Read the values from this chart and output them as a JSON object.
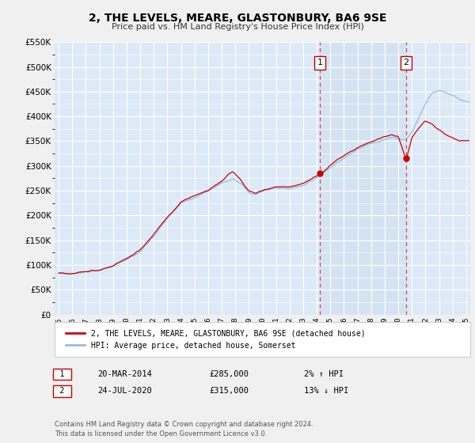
{
  "title": "2, THE LEVELS, MEARE, GLASTONBURY, BA6 9SE",
  "subtitle": "Price paid vs. HM Land Registry's House Price Index (HPI)",
  "legend_label_red": "2, THE LEVELS, MEARE, GLASTONBURY, BA6 9SE (detached house)",
  "legend_label_blue": "HPI: Average price, detached house, Somerset",
  "transaction1_date": "20-MAR-2014",
  "transaction1_price": "£285,000",
  "transaction1_hpi": "2% ↑ HPI",
  "transaction1_year": 2014.22,
  "transaction1_value": 285000,
  "transaction2_date": "24-JUL-2020",
  "transaction2_price": "£315,000",
  "transaction2_hpi": "13% ↓ HPI",
  "transaction2_year": 2020.58,
  "transaction2_value": 315000,
  "footer": "Contains HM Land Registry data © Crown copyright and database right 2024.\nThis data is licensed under the Open Government Licence v3.0.",
  "ylim": [
    0,
    550000
  ],
  "yticks": [
    0,
    50000,
    100000,
    150000,
    200000,
    250000,
    300000,
    350000,
    400000,
    450000,
    500000,
    550000
  ],
  "xlim_start": 1994.7,
  "xlim_end": 2025.3,
  "plot_bg_color": "#dce9f7",
  "shaded_bg_color": "#daeaf7",
  "outer_bg_color": "#f0f0f0",
  "grid_color": "#ffffff",
  "red_color": "#cc0000",
  "blue_color": "#99bbdd",
  "dashed_red": "#dd4444",
  "dashed_gray": "#aaaaaa"
}
